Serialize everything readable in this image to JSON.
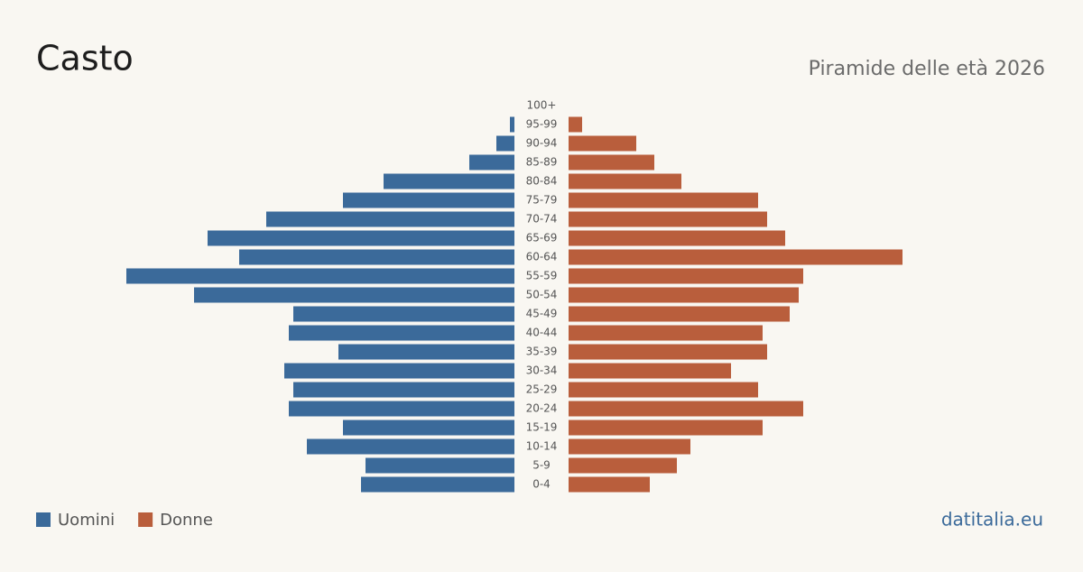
{
  "chart_data": {
    "type": "pyramid",
    "title": "Casto",
    "subtitle": "Piramide delle età 2026",
    "categories": [
      "100+",
      "95-99",
      "90-94",
      "85-89",
      "80-84",
      "75-79",
      "70-74",
      "65-69",
      "60-64",
      "55-59",
      "50-54",
      "45-49",
      "40-44",
      "35-39",
      "30-34",
      "25-29",
      "20-24",
      "15-19",
      "10-14",
      "5-9",
      "0-4"
    ],
    "series": [
      {
        "name": "Uomini",
        "color": "#3b6a9a",
        "values": [
          0,
          1,
          4,
          10,
          29,
          38,
          55,
          68,
          61,
          86,
          71,
          49,
          50,
          39,
          51,
          49,
          50,
          38,
          46,
          33,
          34
        ]
      },
      {
        "name": "Donne",
        "color": "#b95e3c",
        "values": [
          0,
          3,
          15,
          19,
          25,
          42,
          44,
          48,
          74,
          52,
          51,
          49,
          43,
          44,
          36,
          42,
          52,
          43,
          27,
          24,
          18
        ]
      }
    ],
    "source": "datitalia.eu"
  }
}
